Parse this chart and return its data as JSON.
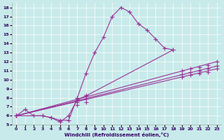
{
  "xlabel": "Windchill (Refroidissement éolien,°C)",
  "bg_color": "#c8eaea",
  "line_color": "#993399",
  "xlim": [
    -0.5,
    23.5
  ],
  "ylim": [
    5,
    18.5
  ],
  "xticks": [
    0,
    1,
    2,
    3,
    4,
    5,
    6,
    7,
    8,
    9,
    10,
    11,
    12,
    13,
    14,
    15,
    16,
    17,
    18,
    19,
    20,
    21,
    22,
    23
  ],
  "yticks": [
    5,
    6,
    7,
    8,
    9,
    10,
    11,
    12,
    13,
    14,
    15,
    16,
    17,
    18
  ],
  "curve1_x": [
    0,
    1,
    2,
    3,
    4,
    5,
    6,
    7,
    8,
    9,
    10,
    11,
    12,
    13,
    14,
    15,
    16,
    17,
    18
  ],
  "curve1_y": [
    6.0,
    6.7,
    6.0,
    6.0,
    5.8,
    5.5,
    5.5,
    8.0,
    10.7,
    13.0,
    14.7,
    17.0,
    18.0,
    17.5,
    16.2,
    15.5,
    14.5,
    13.5,
    13.3
  ],
  "curve2_x": [
    0,
    3,
    4,
    5,
    6,
    7,
    8,
    18
  ],
  "curve2_y": [
    6.0,
    6.0,
    5.8,
    5.3,
    6.0,
    7.8,
    8.2,
    13.3
  ],
  "line3_x": [
    0,
    23
  ],
  "line3_y": [
    6.0,
    12.0
  ],
  "line4_x": [
    0,
    23
  ],
  "line4_y": [
    6.0,
    11.5
  ],
  "line5_x": [
    0,
    23
  ],
  "line5_y": [
    6.0,
    11.2
  ],
  "line3_markers_x": [
    0,
    7,
    8,
    19,
    20,
    21,
    22,
    23
  ],
  "line3_markers_y": [
    6.0,
    7.8,
    8.3,
    11.0,
    11.2,
    11.4,
    11.6,
    12.0
  ],
  "line4_markers_x": [
    0,
    7,
    8,
    19,
    20,
    21,
    22,
    23
  ],
  "line4_markers_y": [
    6.0,
    7.5,
    7.9,
    10.6,
    10.8,
    11.0,
    11.2,
    11.5
  ],
  "line5_markers_x": [
    0,
    7,
    8,
    19,
    20,
    21,
    22,
    23
  ],
  "line5_markers_y": [
    6.0,
    7.2,
    7.5,
    10.3,
    10.5,
    10.7,
    10.8,
    11.2
  ]
}
